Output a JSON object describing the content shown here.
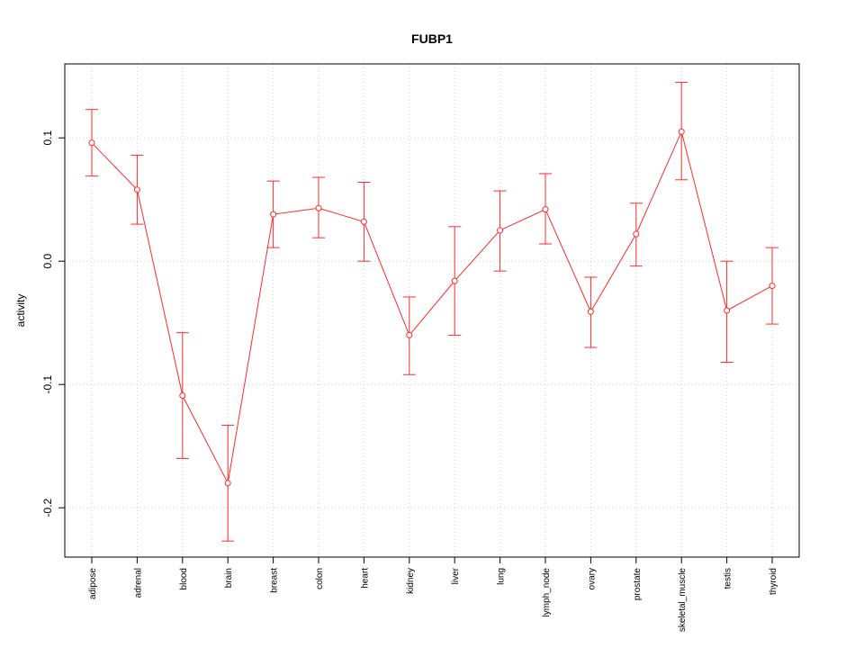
{
  "chart_data": {
    "type": "line",
    "title": "FUBP1",
    "ylabel": "activity",
    "xlabel": "",
    "ylim": [
      -0.24,
      0.16
    ],
    "yticks": [
      -0.2,
      -0.1,
      0.0,
      0.1
    ],
    "ytick_labels": [
      "-0.2",
      "-0.1",
      "0.0",
      "0.1"
    ],
    "grid": true,
    "series_color": "#ff2a2a",
    "grid_color": "#d0d0d0",
    "categories": [
      "adipose",
      "adrenal",
      "blood",
      "brain",
      "breast",
      "colon",
      "heart",
      "kidney",
      "liver",
      "lung",
      "lymph_node",
      "ovary",
      "prostate",
      "skeletal_muscle",
      "testis",
      "thyroid"
    ],
    "values": [
      0.096,
      0.058,
      -0.109,
      -0.18,
      0.038,
      0.043,
      0.032,
      -0.06,
      -0.016,
      0.025,
      0.042,
      -0.041,
      0.022,
      0.105,
      -0.04,
      -0.02
    ],
    "upper": [
      0.123,
      0.086,
      -0.058,
      -0.133,
      0.065,
      0.068,
      0.064,
      -0.029,
      0.028,
      0.057,
      0.071,
      -0.013,
      0.047,
      0.145,
      0.0,
      0.011
    ],
    "lower": [
      0.069,
      0.03,
      -0.16,
      -0.227,
      0.011,
      0.019,
      0.0,
      -0.092,
      -0.06,
      -0.008,
      0.014,
      -0.07,
      -0.004,
      0.066,
      -0.082,
      -0.051
    ]
  }
}
